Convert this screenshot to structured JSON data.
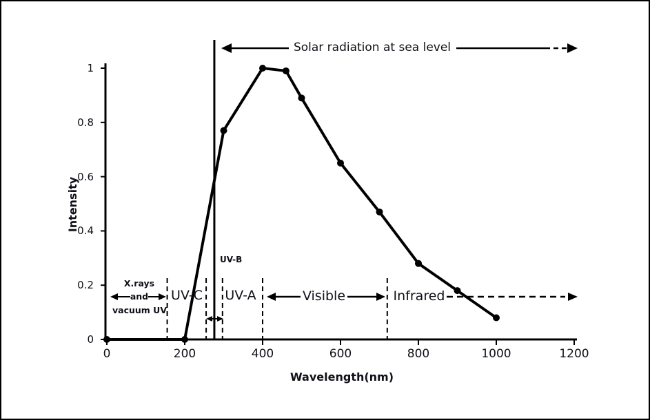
{
  "chart_data": {
    "type": "line",
    "title": "Solar radiation at sea level",
    "xlabel": "Wavelength(nm)",
    "ylabel": "Intensity",
    "xlim": [
      0,
      1200
    ],
    "ylim": [
      0,
      1
    ],
    "x_ticks": [
      0,
      200,
      400,
      600,
      800,
      1000,
      1200
    ],
    "y_ticks": [
      1,
      0.8,
      0.6,
      0.4,
      0.2,
      0
    ],
    "grid": false,
    "legend": false,
    "series": [
      {
        "name": "Solar radiation at sea level",
        "x": [
          0,
          200,
          300,
          400,
          460,
          500,
          600,
          700,
          800,
          900,
          1000
        ],
        "y": [
          0,
          0,
          0.77,
          1.0,
          0.99,
          0.89,
          0.65,
          0.47,
          0.28,
          0.18,
          0.08
        ],
        "color": "#000000",
        "marker": "circle",
        "line_width": 4
      }
    ],
    "annotations": {
      "sea_level_cutoff_line_nm": 276,
      "dashed_boundary_lines_nm": [
        155,
        255,
        297,
        400,
        720
      ],
      "bands": [
        {
          "label": "X.rays and vacuum UV",
          "range_nm": [
            0,
            155
          ]
        },
        {
          "label": "UV-C",
          "range_nm": [
            155,
            255
          ]
        },
        {
          "label": "UV-B",
          "range_nm": [
            255,
            297
          ]
        },
        {
          "label": "UV-A",
          "range_nm": [
            297,
            400
          ]
        },
        {
          "label": "Visible",
          "range_nm": [
            400,
            720
          ]
        },
        {
          "label": "Infrared",
          "range_nm": [
            720,
            1200
          ]
        }
      ]
    }
  },
  "labels": {
    "xrays_line1": "X.rays",
    "xrays_line2": "and",
    "xrays_line3": "vacuum UV",
    "uvc": "UV-C",
    "uvb": "UV-B",
    "uva": "UV-A",
    "visible": "Visible",
    "infrared": "Infrared"
  },
  "colors": {
    "ink": "#101018",
    "line": "#000000",
    "background": "#ffffff"
  }
}
